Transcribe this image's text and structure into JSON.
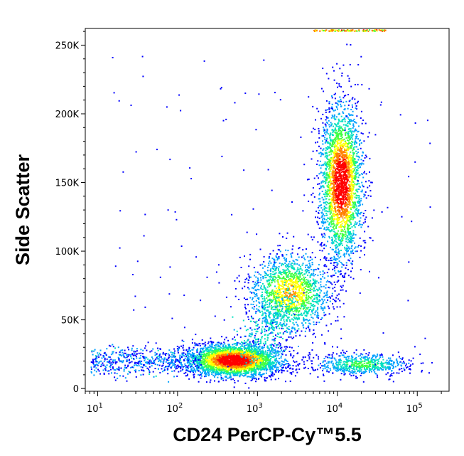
{
  "chart_data": {
    "type": "scatter",
    "title": "",
    "xlabel": "CD24 PerCP-Cy™5.5",
    "ylabel": "Side Scatter",
    "x_scale": "log",
    "xlim": [
      7,
      250000
    ],
    "ylim": [
      -2000,
      262144
    ],
    "x_ticks": [
      {
        "value": 10,
        "base": "10",
        "exp": "1"
      },
      {
        "value": 100,
        "base": "10",
        "exp": "2"
      },
      {
        "value": 1000,
        "base": "10",
        "exp": "3"
      },
      {
        "value": 10000,
        "base": "10",
        "exp": "4"
      },
      {
        "value": 100000,
        "base": "10",
        "exp": "5"
      }
    ],
    "y_ticks": [
      {
        "value": 0,
        "label": "0"
      },
      {
        "value": 50000,
        "label": "50K"
      },
      {
        "value": 100000,
        "label": "100K"
      },
      {
        "value": 150000,
        "label": "150K"
      },
      {
        "value": 200000,
        "label": "200K"
      },
      {
        "value": 250000,
        "label": "250K"
      }
    ],
    "grid": false,
    "colormap": [
      "#0000ff",
      "#00a0ff",
      "#00e0c0",
      "#40ff40",
      "#ffff00",
      "#ff8000",
      "#ff0000"
    ],
    "populations": [
      {
        "x_center": 500,
        "y_center": 21000,
        "x_spread_decades": 0.3,
        "y_spread": 6000,
        "density": "highest"
      },
      {
        "x_center": 11000,
        "y_center": 150000,
        "x_spread_decades": 0.13,
        "y_spread": 28000,
        "density": "high"
      },
      {
        "x_center": 2500,
        "y_center": 70000,
        "x_spread_decades": 0.25,
        "y_spread": 14000,
        "density": "medium"
      },
      {
        "x_center": 20000,
        "y_center": 18000,
        "x_spread_decades": 0.3,
        "y_spread": 4000,
        "density": "low"
      }
    ]
  }
}
